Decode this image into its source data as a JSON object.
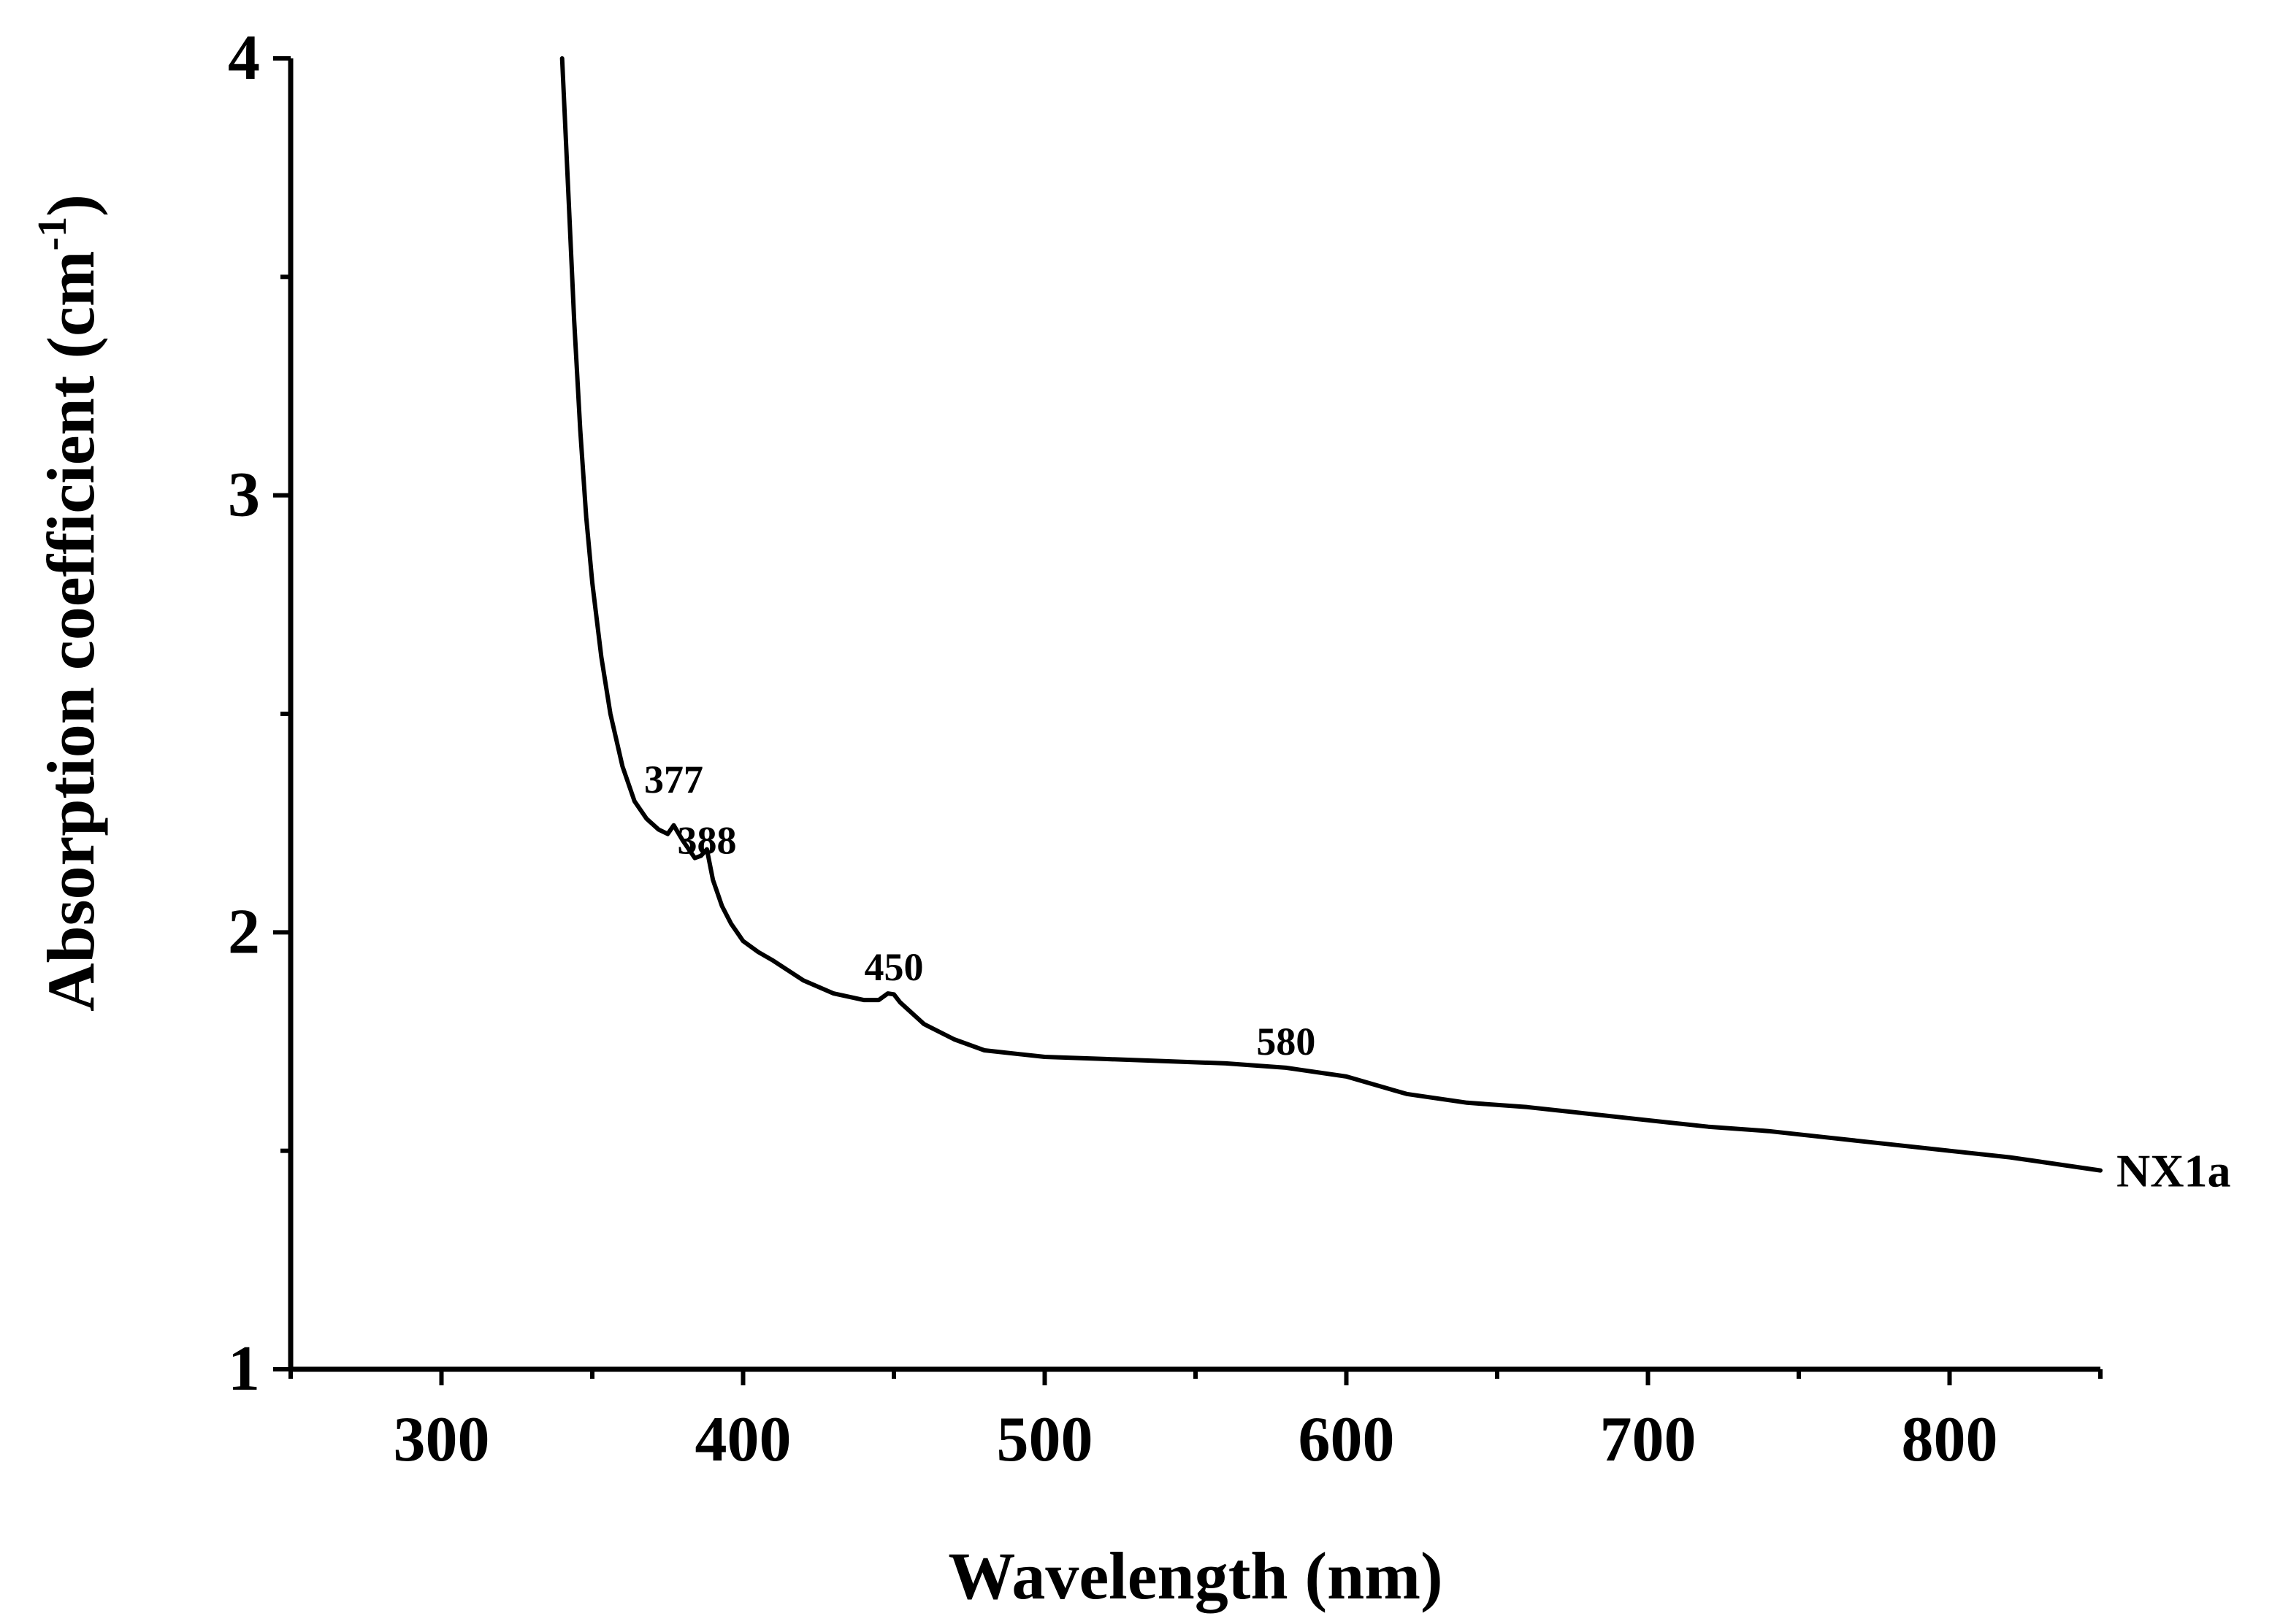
{
  "chart_data": {
    "type": "line",
    "title": "",
    "xlabel": "Wavelength (nm)",
    "ylabel": {
      "main": "Absorption coefficient (cm",
      "superscript": "-1",
      "close": ")"
    },
    "xlim": [
      250,
      850
    ],
    "ylim": [
      1,
      4
    ],
    "x_ticks": [
      300,
      400,
      500,
      600,
      700,
      800
    ],
    "x_minor_ticks": [
      250,
      350,
      450,
      550,
      650,
      750,
      850
    ],
    "y_ticks": [
      1,
      2,
      3,
      4
    ],
    "y_minor_ticks": [
      1.5,
      2.5,
      3.5
    ],
    "grid": false,
    "series": [
      {
        "name": "NX1a",
        "color": "#000000",
        "x": [
          340,
          342,
          344,
          346,
          348,
          350,
          353,
          356,
          360,
          364,
          368,
          372,
          375,
          377,
          380,
          384,
          386,
          388,
          390,
          393,
          396,
          400,
          405,
          410,
          420,
          430,
          440,
          445,
          448,
          450,
          452,
          456,
          460,
          470,
          480,
          500,
          520,
          540,
          560,
          580,
          600,
          620,
          640,
          660,
          680,
          700,
          720,
          740,
          760,
          780,
          800,
          820,
          840,
          850
        ],
        "y": [
          4.0,
          3.7,
          3.4,
          3.15,
          2.95,
          2.8,
          2.63,
          2.5,
          2.38,
          2.3,
          2.26,
          2.235,
          2.225,
          2.245,
          2.21,
          2.17,
          2.175,
          2.19,
          2.12,
          2.06,
          2.02,
          1.98,
          1.955,
          1.935,
          1.89,
          1.86,
          1.845,
          1.845,
          1.86,
          1.858,
          1.84,
          1.815,
          1.79,
          1.755,
          1.73,
          1.715,
          1.71,
          1.705,
          1.7,
          1.69,
          1.67,
          1.63,
          1.61,
          1.6,
          1.585,
          1.57,
          1.555,
          1.545,
          1.53,
          1.515,
          1.5,
          1.485,
          1.465,
          1.455
        ]
      }
    ],
    "annotations": [
      {
        "text": "377",
        "x": 377,
        "y": 2.32
      },
      {
        "text": "388",
        "x": 388,
        "y": 2.18
      },
      {
        "text": "450",
        "x": 450,
        "y": 1.89
      },
      {
        "text": "580",
        "x": 580,
        "y": 1.72
      }
    ],
    "legend_position": "end-of-line-right"
  }
}
